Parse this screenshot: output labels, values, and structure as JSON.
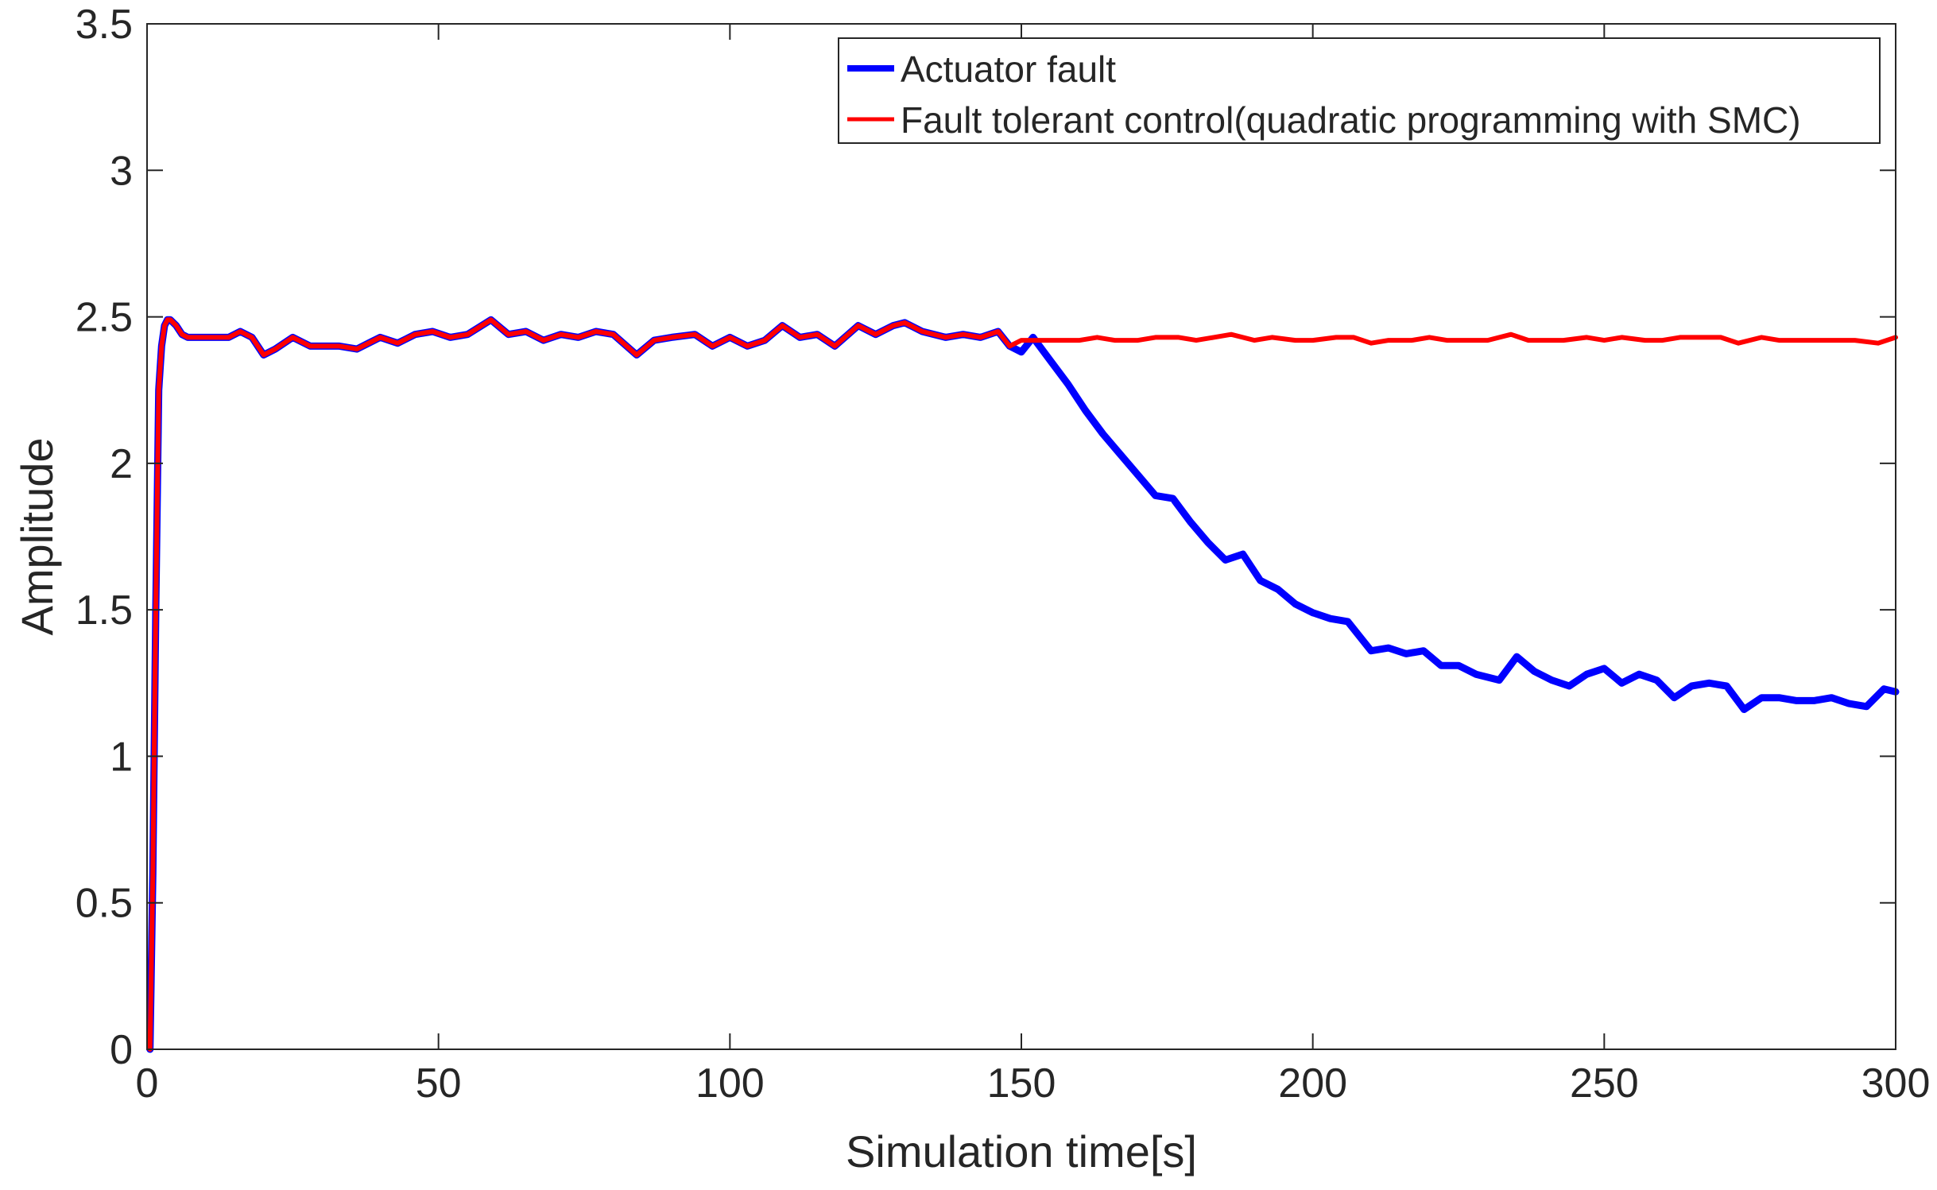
{
  "chart_data": {
    "type": "line",
    "title": "",
    "xlabel": "Simulation time[s]",
    "ylabel": "Amplitude",
    "xlim": [
      0,
      300
    ],
    "ylim": [
      0,
      3.5
    ],
    "grid": false,
    "legend_position": "top-right",
    "xticks": [
      0,
      50,
      100,
      150,
      200,
      250,
      300
    ],
    "yticks": [
      0,
      0.5,
      1,
      1.5,
      2,
      2.5,
      3,
      3.5
    ],
    "xtick_labels": [
      "0",
      "50",
      "100",
      "150",
      "200",
      "250",
      "300"
    ],
    "ytick_labels": [
      "0",
      "0.5",
      "1",
      "1.5",
      "2",
      "2.5",
      "3",
      "3.5"
    ],
    "series": [
      {
        "name": "Actuator fault",
        "color": "#0000ff",
        "x": [
          0.5,
          1.0,
          1.5,
          2.0,
          2.5,
          3.0,
          3.5,
          4.0,
          5.0,
          6.0,
          7.0,
          8.0,
          10,
          12,
          14,
          16,
          18,
          20,
          22,
          25,
          28,
          30,
          33,
          36,
          38,
          40,
          43,
          46,
          49,
          52,
          55,
          59,
          62,
          65,
          68,
          71,
          74,
          77,
          80,
          84,
          87,
          90,
          94,
          97,
          100,
          103,
          106,
          109,
          112,
          115,
          118,
          122,
          125,
          128,
          130,
          133,
          137,
          140,
          143,
          146,
          148,
          150,
          152,
          155,
          158,
          161,
          164,
          167,
          170,
          173,
          176,
          179,
          182,
          185,
          188,
          191,
          194,
          197,
          200,
          203,
          206,
          210,
          213,
          216,
          219,
          222,
          225,
          228,
          232,
          235,
          238,
          241,
          244,
          247,
          250,
          253,
          256,
          259,
          262,
          265,
          268,
          271,
          274,
          277,
          280,
          283,
          286,
          289,
          292,
          295,
          298,
          300
        ],
        "y": [
          0.0,
          0.6,
          1.5,
          2.25,
          2.4,
          2.47,
          2.49,
          2.49,
          2.47,
          2.44,
          2.43,
          2.43,
          2.43,
          2.43,
          2.43,
          2.45,
          2.43,
          2.37,
          2.39,
          2.43,
          2.4,
          2.4,
          2.4,
          2.39,
          2.41,
          2.43,
          2.41,
          2.44,
          2.45,
          2.43,
          2.44,
          2.49,
          2.44,
          2.45,
          2.42,
          2.44,
          2.43,
          2.45,
          2.44,
          2.37,
          2.42,
          2.43,
          2.44,
          2.4,
          2.43,
          2.4,
          2.42,
          2.47,
          2.43,
          2.44,
          2.4,
          2.47,
          2.44,
          2.47,
          2.48,
          2.45,
          2.43,
          2.44,
          2.43,
          2.45,
          2.4,
          2.38,
          2.43,
          2.35,
          2.27,
          2.18,
          2.1,
          2.03,
          1.96,
          1.89,
          1.88,
          1.8,
          1.73,
          1.67,
          1.69,
          1.6,
          1.57,
          1.52,
          1.49,
          1.47,
          1.46,
          1.36,
          1.37,
          1.35,
          1.36,
          1.31,
          1.31,
          1.28,
          1.26,
          1.34,
          1.29,
          1.26,
          1.24,
          1.28,
          1.3,
          1.25,
          1.28,
          1.26,
          1.2,
          1.24,
          1.25,
          1.24,
          1.16,
          1.2,
          1.2,
          1.19,
          1.19,
          1.2,
          1.18,
          1.17,
          1.23,
          1.22
        ]
      },
      {
        "name": "Fault tolerant control(quadratic programming with SMC)",
        "color": "#ff0000",
        "x": [
          0.5,
          1.0,
          1.5,
          2.0,
          2.5,
          3.0,
          3.5,
          4.0,
          5.0,
          6.0,
          7.0,
          8.0,
          10,
          12,
          14,
          16,
          18,
          20,
          22,
          25,
          28,
          30,
          33,
          36,
          38,
          40,
          43,
          46,
          49,
          52,
          55,
          59,
          62,
          65,
          68,
          71,
          74,
          77,
          80,
          84,
          87,
          90,
          94,
          97,
          100,
          103,
          106,
          109,
          112,
          115,
          118,
          122,
          125,
          128,
          130,
          133,
          137,
          140,
          143,
          146,
          148,
          150,
          153,
          157,
          160,
          163,
          166,
          170,
          173,
          177,
          180,
          183,
          186,
          190,
          193,
          197,
          200,
          204,
          207,
          210,
          213,
          217,
          220,
          223,
          227,
          230,
          234,
          237,
          240,
          243,
          247,
          250,
          253,
          257,
          260,
          263,
          267,
          270,
          273,
          277,
          280,
          283,
          287,
          290,
          293,
          297,
          300
        ],
        "y": [
          0.0,
          0.6,
          1.5,
          2.25,
          2.4,
          2.47,
          2.49,
          2.49,
          2.47,
          2.44,
          2.43,
          2.43,
          2.43,
          2.43,
          2.43,
          2.45,
          2.43,
          2.37,
          2.39,
          2.43,
          2.4,
          2.4,
          2.4,
          2.39,
          2.41,
          2.43,
          2.41,
          2.44,
          2.45,
          2.43,
          2.44,
          2.49,
          2.44,
          2.45,
          2.42,
          2.44,
          2.43,
          2.45,
          2.44,
          2.37,
          2.42,
          2.43,
          2.44,
          2.4,
          2.43,
          2.4,
          2.42,
          2.47,
          2.43,
          2.44,
          2.4,
          2.47,
          2.44,
          2.47,
          2.48,
          2.45,
          2.43,
          2.44,
          2.43,
          2.45,
          2.4,
          2.42,
          2.42,
          2.42,
          2.42,
          2.43,
          2.42,
          2.42,
          2.43,
          2.43,
          2.42,
          2.43,
          2.44,
          2.42,
          2.43,
          2.42,
          2.42,
          2.43,
          2.43,
          2.41,
          2.42,
          2.42,
          2.43,
          2.42,
          2.42,
          2.42,
          2.44,
          2.42,
          2.42,
          2.42,
          2.43,
          2.42,
          2.43,
          2.42,
          2.42,
          2.43,
          2.43,
          2.43,
          2.41,
          2.43,
          2.42,
          2.42,
          2.42,
          2.42,
          2.42,
          2.41,
          2.43
        ]
      }
    ]
  }
}
